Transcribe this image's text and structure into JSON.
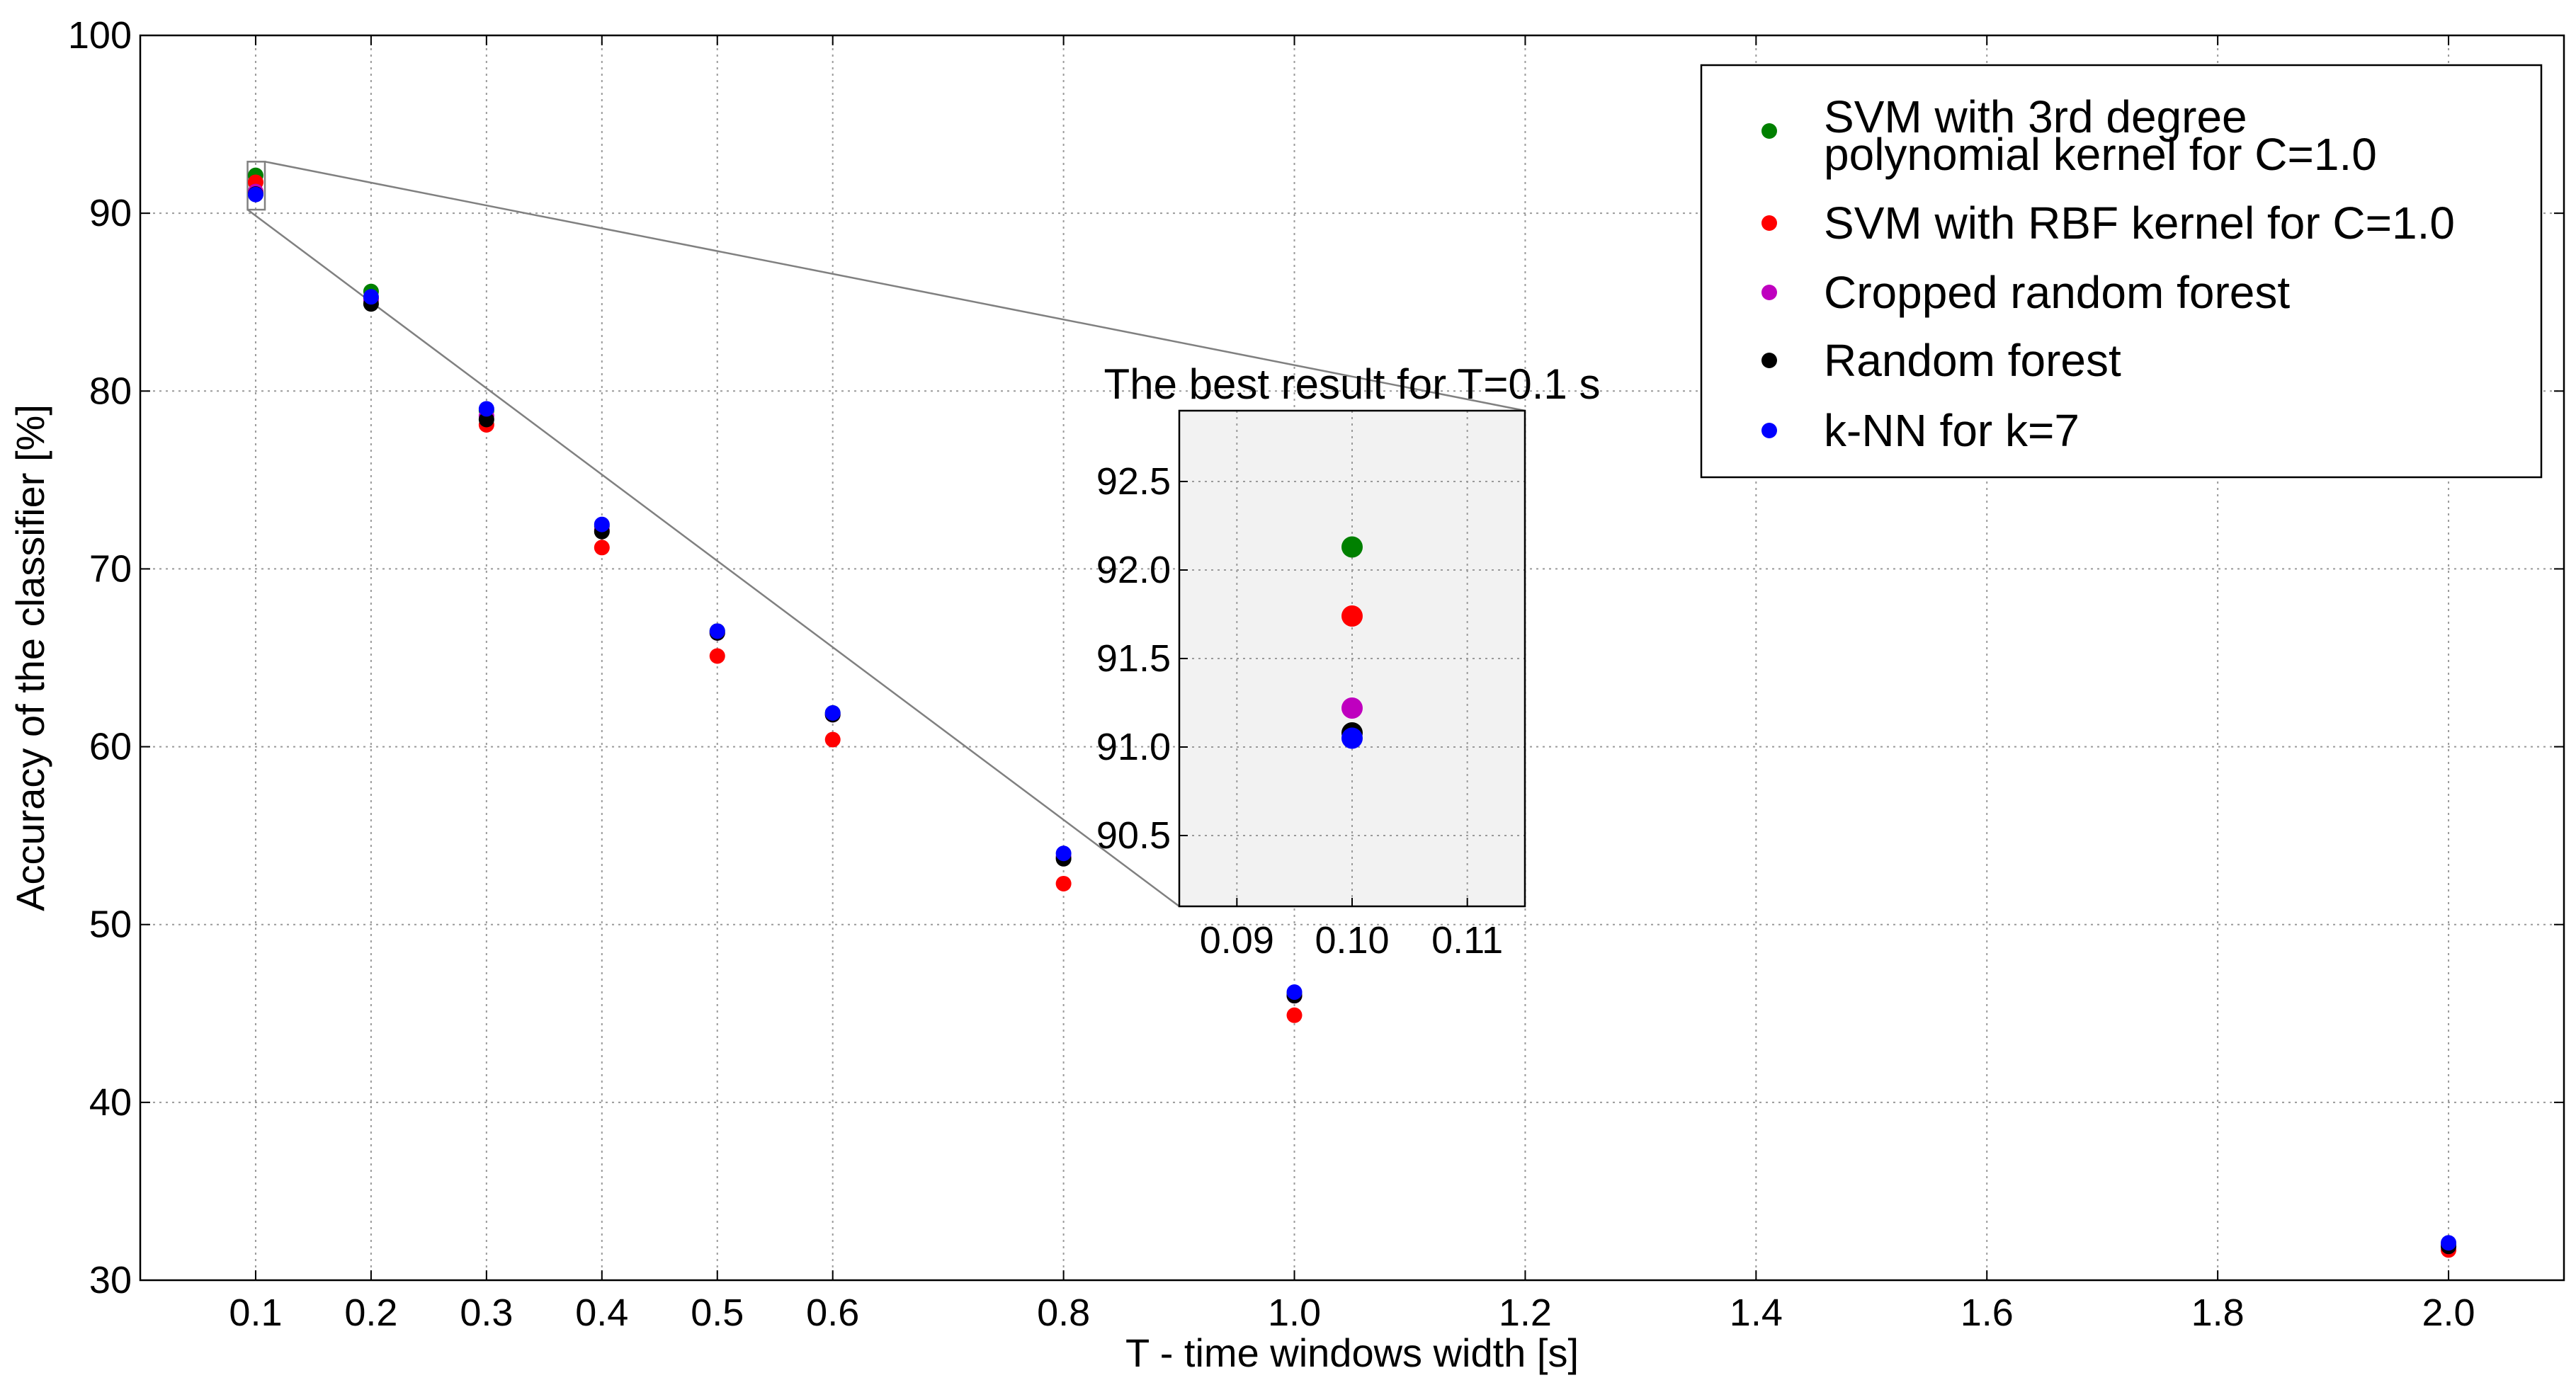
{
  "chart_data": {
    "type": "scatter",
    "title": "",
    "xlabel": "T - time windows width [s]",
    "ylabel": "Accuracy of the classifier [%]",
    "xlim": [
      0.0,
      2.1
    ],
    "ylim": [
      30,
      100
    ],
    "x_ticks": [
      "0.1",
      "0.2",
      "0.3",
      "0.4",
      "0.5",
      "0.6",
      "0.8",
      "1.0",
      "1.2",
      "1.4",
      "1.6",
      "1.8",
      "2.0"
    ],
    "y_ticks": [
      "30",
      "40",
      "50",
      "60",
      "70",
      "80",
      "90",
      "100"
    ],
    "grid": true,
    "legend_position": "top-right",
    "series": [
      {
        "name": "SVM with 3rd degree polynomial kernel for C=1.0",
        "color": "#008000",
        "x": [
          0.1,
          0.2,
          0.3,
          0.4,
          0.5,
          0.6,
          0.8,
          1.0,
          2.0
        ],
        "y": [
          92.13,
          85.6,
          78.9,
          72.4,
          66.5,
          61.9,
          53.8,
          46.1,
          32.0
        ]
      },
      {
        "name": "SVM with RBF kernel for C=1.0",
        "color": "#ff0000",
        "x": [
          0.1,
          0.2,
          0.3,
          0.4,
          0.5,
          0.6,
          0.8,
          1.0,
          2.0
        ],
        "y": [
          91.74,
          85.2,
          78.1,
          71.2,
          65.1,
          60.4,
          52.3,
          44.9,
          31.7
        ]
      },
      {
        "name": "Cropped random forest",
        "color": "#bf00bf",
        "x": [
          0.1,
          0.2,
          0.3,
          0.4,
          0.5,
          0.6,
          0.8,
          1.0,
          2.0
        ],
        "y": [
          91.22,
          85.1,
          78.6,
          72.2,
          66.4,
          61.8,
          53.8,
          46.0,
          31.9
        ]
      },
      {
        "name": "Random forest",
        "color": "#000000",
        "x": [
          0.1,
          0.2,
          0.3,
          0.4,
          0.5,
          0.6,
          0.8,
          1.0,
          2.0
        ],
        "y": [
          91.08,
          84.9,
          78.4,
          72.1,
          66.4,
          61.8,
          53.7,
          46.0,
          31.9
        ]
      },
      {
        "name": "k-NN for k=7",
        "color": "#0000ff",
        "x": [
          0.1,
          0.2,
          0.3,
          0.4,
          0.5,
          0.6,
          0.8,
          1.0,
          2.0
        ],
        "y": [
          91.05,
          85.3,
          79.0,
          72.5,
          66.5,
          61.9,
          54.0,
          46.2,
          32.1
        ]
      }
    ],
    "inset": {
      "title": "The best result for T=0.1 s",
      "xlim": [
        0.085,
        0.115
      ],
      "ylim": [
        90.1,
        92.9
      ],
      "x_ticks": [
        "0.09",
        "0.10",
        "0.11"
      ],
      "y_ticks": [
        "90.5",
        "91.0",
        "91.5",
        "92.0",
        "92.5"
      ],
      "zoom_region": {
        "x": [
          0.093,
          0.108
        ],
        "y": [
          90.2,
          92.9
        ]
      }
    }
  }
}
